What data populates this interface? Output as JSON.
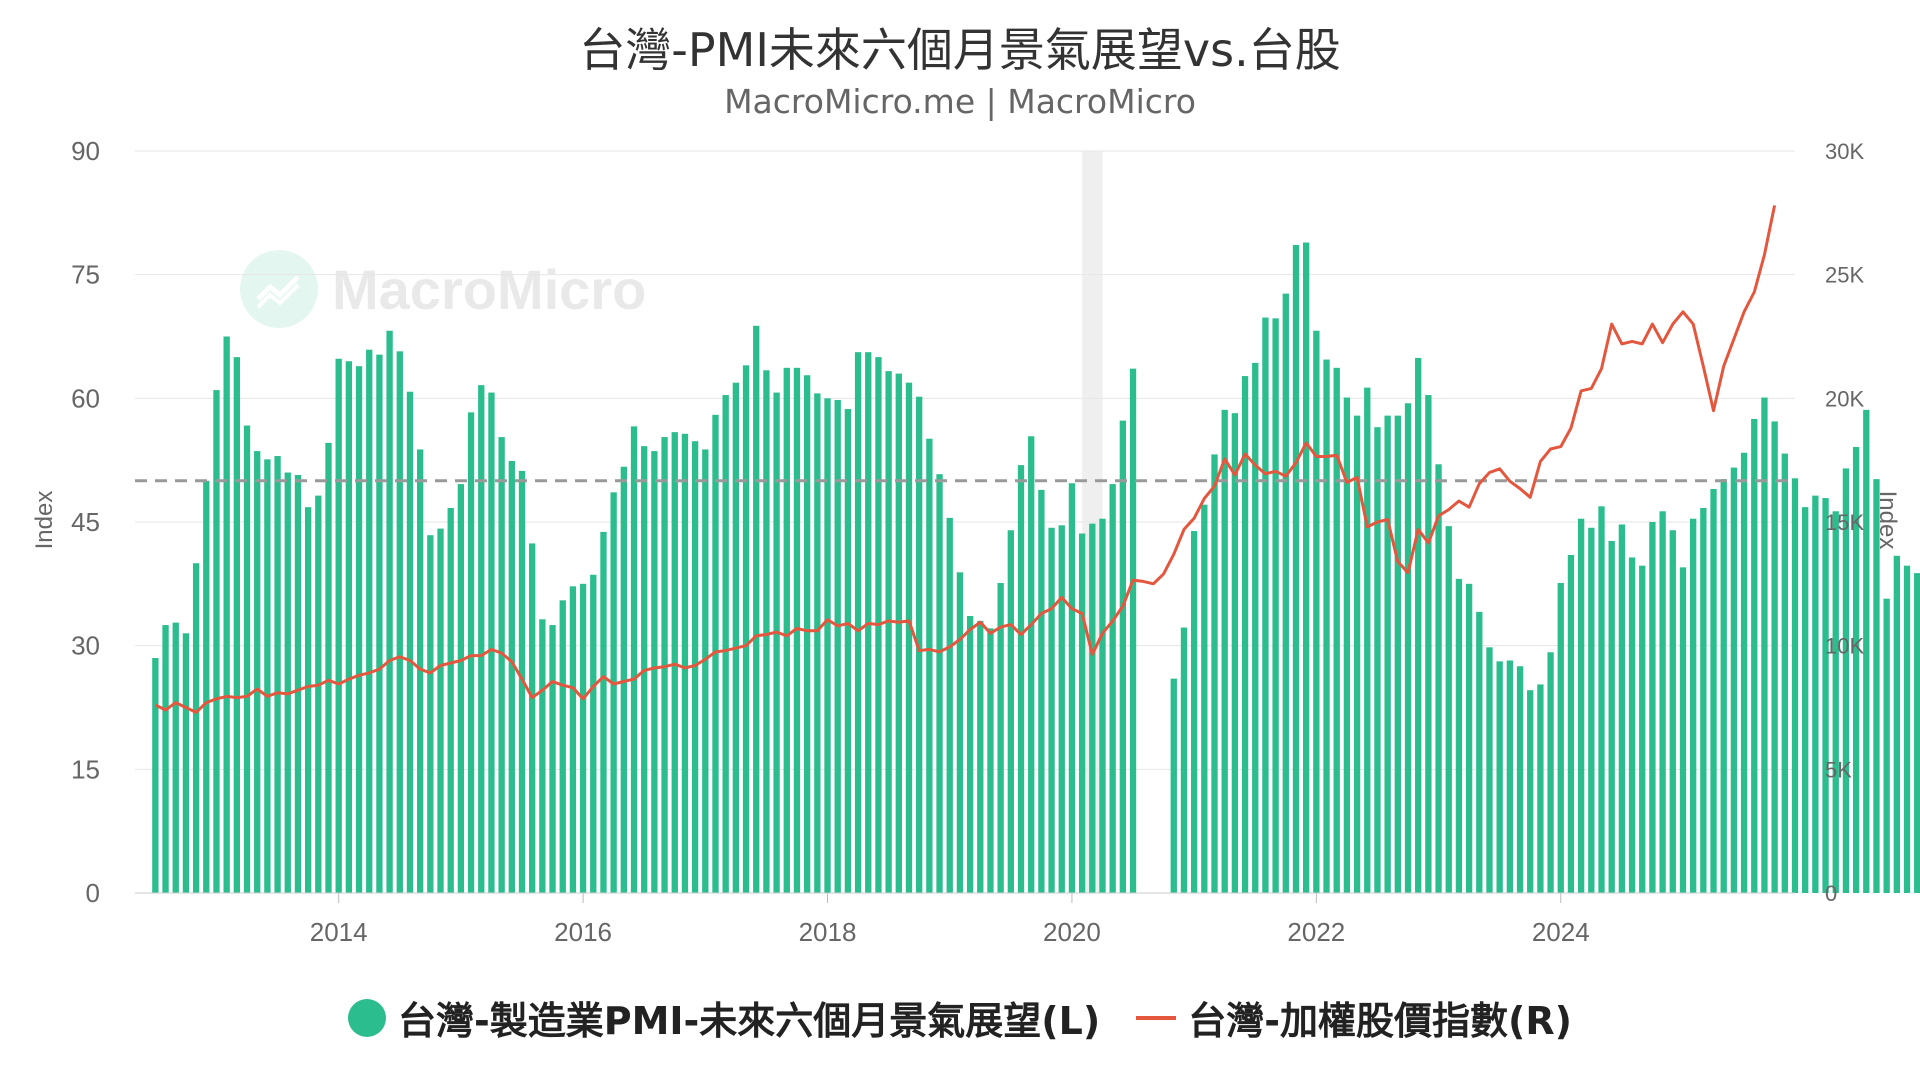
{
  "title": "台灣-PMI未來六個月景氣展望vs.台股",
  "subtitle": "MacroMicro.me | MacroMicro",
  "watermark": "MacroMicro",
  "chart_data": {
    "type": "bar+line",
    "left_axis": {
      "label": "Index",
      "ylim": [
        0,
        90
      ],
      "ticks": [
        "0",
        "15",
        "30",
        "45",
        "60",
        "75",
        "90"
      ]
    },
    "right_axis": {
      "label": "Index",
      "ylim": [
        0,
        30000
      ],
      "ticks": [
        "0",
        "5K",
        "10K",
        "15K",
        "20K",
        "25K",
        "30K"
      ]
    },
    "x_ticks": [
      "2014",
      "2016",
      "2018",
      "2020",
      "2022",
      "2024"
    ],
    "x_range": [
      "2012-05",
      "2025-12"
    ],
    "reference_line": {
      "value": 50,
      "style": "dashed",
      "color": "#999999"
    },
    "shaded_region": {
      "from": "2020-02",
      "to": "2020-04",
      "color": "#e8e8e8"
    },
    "series": [
      {
        "name": "台灣-製造業PMI-未來六個月景氣展望(L)",
        "type": "bar",
        "axis": "left",
        "color": "#2bbd8e",
        "start": "2012-07",
        "values": [
          28.5,
          32.5,
          32.8,
          31.5,
          40.0,
          50.0,
          61.0,
          67.5,
          65.0,
          56.7,
          53.6,
          52.6,
          53.0,
          51.0,
          50.7,
          46.8,
          48.2,
          54.6,
          64.8,
          64.5,
          63.9,
          65.9,
          65.3,
          68.2,
          65.7,
          60.8,
          53.8,
          43.4,
          44.2,
          46.7,
          49.6,
          58.3,
          61.6,
          60.7,
          55.3,
          52.4,
          51.2,
          42.4,
          33.2,
          32.5,
          35.5,
          37.2,
          37.5,
          38.6,
          43.8,
          48.6,
          51.7,
          56.6,
          54.2,
          53.6,
          55.3,
          55.9,
          55.7,
          54.8,
          53.8,
          58.0,
          60.4,
          61.9,
          64.0,
          68.8,
          63.4,
          60.7,
          63.7,
          63.7,
          62.8,
          60.6,
          60.0,
          59.8,
          58.7,
          65.6,
          65.6,
          65.0,
          63.3,
          63.0,
          61.9,
          60.2,
          55.1,
          50.8,
          45.5,
          38.9,
          33.6,
          33.0,
          32.1,
          37.6,
          44.0,
          51.9,
          55.4,
          48.9,
          44.3,
          44.6,
          49.7,
          43.6,
          44.8,
          45.4,
          49.6,
          57.3,
          63.6,
          null,
          null,
          null,
          26.0,
          32.2,
          43.9,
          47.1,
          53.2,
          58.6,
          58.2,
          62.7,
          64.3,
          69.8,
          69.7,
          72.7,
          78.6,
          78.9,
          68.2,
          64.7,
          63.7,
          60.1,
          57.9,
          61.3,
          56.5,
          57.9,
          57.9,
          59.4,
          64.9,
          60.4,
          52.0,
          44.5,
          38.1,
          37.5,
          34.1,
          29.8,
          28.1,
          28.2,
          27.5,
          24.6,
          25.3,
          29.2,
          37.6,
          41.0,
          45.4,
          44.3,
          46.9,
          42.7,
          44.7,
          40.7,
          39.7,
          45.0,
          46.3,
          44.0,
          39.5,
          45.4,
          46.7,
          49.0,
          50.2,
          51.6,
          53.4,
          57.5,
          60.1,
          57.2,
          53.3,
          50.3,
          46.8,
          48.2,
          47.9,
          46.3,
          51.5,
          54.1,
          58.6,
          50.2,
          35.7,
          40.9,
          39.7,
          38.8,
          37.5,
          39.3
        ]
      },
      {
        "name": "台灣-加權股價指數(R)",
        "type": "line",
        "axis": "right",
        "color": "#e4573e",
        "points": [
          [
            "2012-07",
            7600
          ],
          [
            "2012-08",
            7400
          ],
          [
            "2012-09",
            7700
          ],
          [
            "2012-10",
            7500
          ],
          [
            "2012-11",
            7300
          ],
          [
            "2012-12",
            7700
          ],
          [
            "2013-01",
            7850
          ],
          [
            "2013-02",
            7950
          ],
          [
            "2013-03",
            7900
          ],
          [
            "2013-04",
            7950
          ],
          [
            "2013-05",
            8250
          ],
          [
            "2013-06",
            7950
          ],
          [
            "2013-07",
            8100
          ],
          [
            "2013-08",
            8050
          ],
          [
            "2013-09",
            8200
          ],
          [
            "2013-10",
            8350
          ],
          [
            "2013-11",
            8400
          ],
          [
            "2013-12",
            8600
          ],
          [
            "2014-01",
            8450
          ],
          [
            "2014-02",
            8650
          ],
          [
            "2014-03",
            8800
          ],
          [
            "2014-04",
            8900
          ],
          [
            "2014-05",
            9050
          ],
          [
            "2014-06",
            9400
          ],
          [
            "2014-07",
            9550
          ],
          [
            "2014-08",
            9400
          ],
          [
            "2014-09",
            9050
          ],
          [
            "2014-10",
            8900
          ],
          [
            "2014-11",
            9200
          ],
          [
            "2014-12",
            9300
          ],
          [
            "2015-01",
            9400
          ],
          [
            "2015-02",
            9600
          ],
          [
            "2015-03",
            9600
          ],
          [
            "2015-04",
            9850
          ],
          [
            "2015-05",
            9700
          ],
          [
            "2015-06",
            9350
          ],
          [
            "2015-07",
            8650
          ],
          [
            "2015-08",
            7900
          ],
          [
            "2015-09",
            8200
          ],
          [
            "2015-10",
            8550
          ],
          [
            "2015-11",
            8400
          ],
          [
            "2015-12",
            8300
          ],
          [
            "2016-01",
            7850
          ],
          [
            "2016-02",
            8350
          ],
          [
            "2016-03",
            8750
          ],
          [
            "2016-04",
            8450
          ],
          [
            "2016-05",
            8550
          ],
          [
            "2016-06",
            8650
          ],
          [
            "2016-07",
            9000
          ],
          [
            "2016-08",
            9100
          ],
          [
            "2016-09",
            9150
          ],
          [
            "2016-10",
            9250
          ],
          [
            "2016-11",
            9100
          ],
          [
            "2016-12",
            9200
          ],
          [
            "2017-01",
            9450
          ],
          [
            "2017-02",
            9750
          ],
          [
            "2017-03",
            9800
          ],
          [
            "2017-04",
            9900
          ],
          [
            "2017-05",
            10000
          ],
          [
            "2017-06",
            10400
          ],
          [
            "2017-07",
            10450
          ],
          [
            "2017-08",
            10550
          ],
          [
            "2017-09",
            10400
          ],
          [
            "2017-10",
            10700
          ],
          [
            "2017-11",
            10600
          ],
          [
            "2017-12",
            10600
          ],
          [
            "2018-01",
            11050
          ],
          [
            "2018-02",
            10800
          ],
          [
            "2018-03",
            10900
          ],
          [
            "2018-04",
            10600
          ],
          [
            "2018-05",
            10900
          ],
          [
            "2018-06",
            10850
          ],
          [
            "2018-07",
            11000
          ],
          [
            "2018-08",
            10950
          ],
          [
            "2018-09",
            11000
          ],
          [
            "2018-10",
            9800
          ],
          [
            "2018-11",
            9850
          ],
          [
            "2018-12",
            9750
          ],
          [
            "2019-01",
            9950
          ],
          [
            "2019-02",
            10250
          ],
          [
            "2019-03",
            10650
          ],
          [
            "2019-04",
            10950
          ],
          [
            "2019-05",
            10500
          ],
          [
            "2019-06",
            10750
          ],
          [
            "2019-07",
            10850
          ],
          [
            "2019-08",
            10450
          ],
          [
            "2019-09",
            10850
          ],
          [
            "2019-10",
            11300
          ],
          [
            "2019-11",
            11500
          ],
          [
            "2019-12",
            11950
          ],
          [
            "2020-01",
            11500
          ],
          [
            "2020-02",
            11300
          ],
          [
            "2020-03",
            9650
          ],
          [
            "2020-04",
            10500
          ],
          [
            "2020-05",
            11000
          ],
          [
            "2020-06",
            11600
          ],
          [
            "2020-07",
            12650
          ],
          [
            "2020-08",
            12600
          ],
          [
            "2020-09",
            12500
          ],
          [
            "2020-10",
            12900
          ],
          [
            "2020-11",
            13700
          ],
          [
            "2020-12",
            14700
          ],
          [
            "2021-01",
            15150
          ],
          [
            "2021-02",
            15950
          ],
          [
            "2021-03",
            16450
          ],
          [
            "2021-04",
            17550
          ],
          [
            "2021-05",
            16900
          ],
          [
            "2021-06",
            17750
          ],
          [
            "2021-07",
            17300
          ],
          [
            "2021-08",
            16950
          ],
          [
            "2021-09",
            17050
          ],
          [
            "2021-10",
            16850
          ],
          [
            "2021-11",
            17400
          ],
          [
            "2021-12",
            18200
          ],
          [
            "2022-01",
            17650
          ],
          [
            "2022-02",
            17650
          ],
          [
            "2022-03",
            17700
          ],
          [
            "2022-04",
            16600
          ],
          [
            "2022-05",
            16800
          ],
          [
            "2022-06",
            14800
          ],
          [
            "2022-07",
            15000
          ],
          [
            "2022-08",
            15100
          ],
          [
            "2022-09",
            13400
          ],
          [
            "2022-10",
            12950
          ],
          [
            "2022-11",
            14700
          ],
          [
            "2022-12",
            14150
          ],
          [
            "2023-01",
            15250
          ],
          [
            "2023-02",
            15500
          ],
          [
            "2023-03",
            15850
          ],
          [
            "2023-04",
            15600
          ],
          [
            "2023-05",
            16550
          ],
          [
            "2023-06",
            17000
          ],
          [
            "2023-07",
            17150
          ],
          [
            "2023-08",
            16650
          ],
          [
            "2023-09",
            16350
          ],
          [
            "2023-10",
            16000
          ],
          [
            "2023-11",
            17450
          ],
          [
            "2023-12",
            17950
          ],
          [
            "2024-01",
            18050
          ],
          [
            "2024-02",
            18800
          ],
          [
            "2024-03",
            20300
          ],
          [
            "2024-04",
            20400
          ],
          [
            "2024-05",
            21200
          ],
          [
            "2024-06",
            23000
          ],
          [
            "2024-07",
            22200
          ],
          [
            "2024-08",
            22300
          ],
          [
            "2024-09",
            22200
          ],
          [
            "2024-10",
            23000
          ],
          [
            "2024-11",
            22250
          ],
          [
            "2024-12",
            23000
          ],
          [
            "2025-01",
            23500
          ],
          [
            "2025-02",
            23000
          ],
          [
            "2025-03",
            21300
          ],
          [
            "2025-04",
            19500
          ],
          [
            "2025-05",
            21300
          ],
          [
            "2025-06",
            22400
          ],
          [
            "2025-07",
            23500
          ],
          [
            "2025-08",
            24300
          ],
          [
            "2025-09",
            25800
          ],
          [
            "2025-10",
            27800
          ]
        ]
      }
    ],
    "legend": {
      "position": "bottom"
    }
  }
}
